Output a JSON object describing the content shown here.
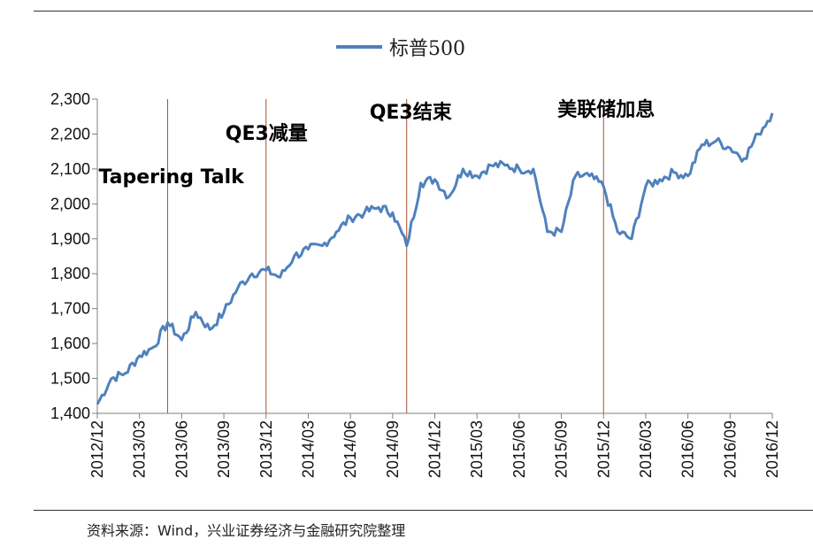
{
  "chart_data": {
    "type": "line",
    "ylim": [
      1400,
      2300
    ],
    "y_ticks": [
      "1,400",
      "1,500",
      "1,600",
      "1,700",
      "1,800",
      "1,900",
      "2,000",
      "2,100",
      "2,200",
      "2,300"
    ],
    "x_ticks": [
      "2012/12",
      "2013/03",
      "2013/06",
      "2013/09",
      "2013/12",
      "2014/03",
      "2014/06",
      "2014/09",
      "2014/12",
      "2015/03",
      "2015/06",
      "2015/09",
      "2015/12",
      "2016/03",
      "2016/06",
      "2016/09",
      "2016/12"
    ],
    "series": [
      {
        "name": "标普500",
        "color": "#4f81bd",
        "x": [
          "2012/12",
          "2013/01",
          "2013/02",
          "2013/03",
          "2013/04",
          "2013/05",
          "2013/06",
          "2013/07",
          "2013/08",
          "2013/09",
          "2013/10",
          "2013/11",
          "2013/12",
          "2014/01",
          "2014/02",
          "2014/03",
          "2014/04",
          "2014/05",
          "2014/06",
          "2014/07",
          "2014/08",
          "2014/09",
          "2014/10",
          "2014/11",
          "2014/12",
          "2015/01",
          "2015/02",
          "2015/03",
          "2015/04",
          "2015/05",
          "2015/06",
          "2015/07",
          "2015/08",
          "2015/09",
          "2015/10",
          "2015/11",
          "2015/12",
          "2016/01",
          "2016/02",
          "2016/03",
          "2016/04",
          "2016/05",
          "2016/06",
          "2016/07",
          "2016/08",
          "2016/09",
          "2016/10",
          "2016/11",
          "2016/12"
        ],
        "values": [
          1426,
          1500,
          1515,
          1565,
          1590,
          1660,
          1610,
          1690,
          1640,
          1690,
          1760,
          1800,
          1810,
          1790,
          1850,
          1870,
          1880,
          1920,
          1960,
          1975,
          1990,
          1975,
          1880,
          2060,
          2070,
          2020,
          2100,
          2080,
          2110,
          2110,
          2100,
          2100,
          1920,
          1920,
          2080,
          2080,
          2050,
          1920,
          1900,
          2050,
          2070,
          2090,
          2080,
          2170,
          2180,
          2160,
          2130,
          2200,
          2260
        ]
      }
    ],
    "annotations": [
      {
        "label": "Tapering Talk",
        "x": "2013/05"
      },
      {
        "label": "QE3减量",
        "x": "2013/12"
      },
      {
        "label": "QE3结束",
        "x": "2014/10"
      },
      {
        "label": "美联储加息",
        "x": "2015/12"
      }
    ],
    "grid": false,
    "legend_position": "top"
  },
  "source_text": "资料来源：Wind，兴业证券经济与金融研究院整理"
}
